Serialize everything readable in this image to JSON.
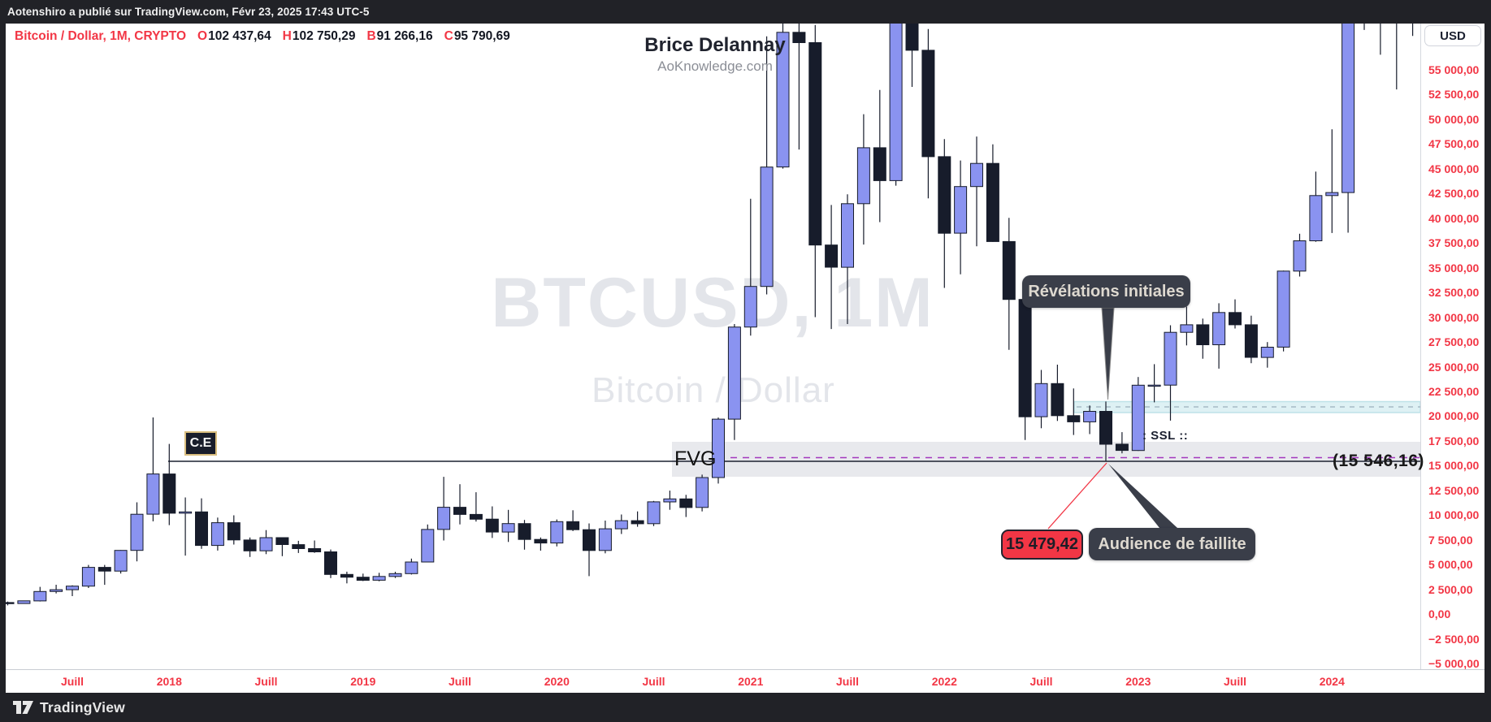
{
  "publish_bar": {
    "text": "Aotenshiro a publié sur TradingView.com, Févr 23, 2025 17:43 UTC-5"
  },
  "symbol_line": {
    "symbol": "Bitcoin / Dollar, 1M, CRYPTO",
    "ohlc": [
      {
        "k": "O",
        "v": "102 437,64"
      },
      {
        "k": "H",
        "v": "102 750,29"
      },
      {
        "k": "B",
        "v": "91 266,16"
      },
      {
        "k": "C",
        "v": "95 790,69"
      }
    ]
  },
  "watermark": {
    "line1": "BTCUSD, 1M",
    "line2": "Bitcoin / Dollar"
  },
  "signature": {
    "name": "Brice Delannay",
    "site": "AoKnowledge.com"
  },
  "axis": {
    "currency_button": "USD",
    "price_labels": [
      "55 000,00",
      "52 500,00",
      "50 000,00",
      "47 500,00",
      "45 000,00",
      "42 500,00",
      "40 000,00",
      "37 500,00",
      "35 000,00",
      "32 500,00",
      "30 000,00",
      "27 500,00",
      "25 000,00",
      "22 500,00",
      "20 000,00",
      "17 500,00",
      "15 000,00",
      "12 500,00",
      "10 000,00",
      "7 500,00",
      "5 000,00",
      "2 500,00",
      "0,00",
      "−2 500,00",
      "−5 000,00"
    ],
    "time_labels": [
      {
        "label": "Juill",
        "mi": 4
      },
      {
        "label": "2018",
        "mi": 10
      },
      {
        "label": "Juill",
        "mi": 16
      },
      {
        "label": "2019",
        "mi": 22
      },
      {
        "label": "Juill",
        "mi": 28
      },
      {
        "label": "2020",
        "mi": 34
      },
      {
        "label": "Juill",
        "mi": 40
      },
      {
        "label": "2021",
        "mi": 46
      },
      {
        "label": "Juill",
        "mi": 52
      },
      {
        "label": "2022",
        "mi": 58
      },
      {
        "label": "Juill",
        "mi": 64
      },
      {
        "label": "2023",
        "mi": 70
      },
      {
        "label": "Juill",
        "mi": 76
      },
      {
        "label": "2024",
        "mi": 82
      }
    ]
  },
  "annotations": {
    "ce_label": "C.E",
    "fvg_label": "FVG",
    "level_price_label": "(15 546,16)",
    "ssl_label": ": SSL ::",
    "revelations_label": "Révélations initiales",
    "bankruptcy_price_label": "15 479,42",
    "bankruptcy_label": "Audience de faillite"
  },
  "footer": {
    "brand": "TradingView"
  },
  "colors": {
    "chrome_dark": "#212227",
    "axis_text_red": "#f23645",
    "candle_up_body": "#8A93F0",
    "candle_down_body": "#171C2B",
    "candle_border": "#171C2B",
    "fvg_band": "rgba(205,207,214,0.45)",
    "cyan_band_fill": "#DEF1F4",
    "cyan_band_edge": "#BFE2E8",
    "cyan_dash": "#9AAFBC",
    "purple_dash": "#A438BE",
    "ce_line": "#1B2030",
    "tooltip_bg": "#3A3E49",
    "red_accent": "#F23645"
  },
  "chart_data": {
    "type": "candlestick",
    "symbol": "BTCUSD",
    "timeframe": "1M",
    "title": "Bitcoin / Dollar, 1M, CRYPTO",
    "price_axis": {
      "min": -5000,
      "max": 55000,
      "step": 2500,
      "format": "fr"
    },
    "time_axis_visible_range": [
      "2017-03",
      "2024-06"
    ],
    "grid": false,
    "annotation_prices": {
      "fvg_consequent_encroachment": 15546.16,
      "bankruptcy_hearing_low": 15479.42
    },
    "candles_format": [
      "month",
      "open",
      "high",
      "low",
      "close"
    ],
    "candles": [
      [
        "2017-03",
        1180,
        1280,
        890,
        1080
      ],
      [
        "2017-04",
        1080,
        1350,
        1060,
        1350
      ],
      [
        "2017-05",
        1350,
        2760,
        1290,
        2300
      ],
      [
        "2017-06",
        2300,
        2980,
        2100,
        2480
      ],
      [
        "2017-07",
        2480,
        2920,
        1830,
        2840
      ],
      [
        "2017-08",
        2840,
        4980,
        2650,
        4735
      ],
      [
        "2017-09",
        4735,
        4975,
        2970,
        4360
      ],
      [
        "2017-10",
        4360,
        6480,
        4110,
        6450
      ],
      [
        "2017-11",
        6450,
        11300,
        5340,
        10100
      ],
      [
        "2017-12",
        10100,
        19870,
        9380,
        14160
      ],
      [
        "2018-01",
        14160,
        17200,
        9000,
        10200
      ],
      [
        "2018-02",
        10200,
        11790,
        5920,
        10330
      ],
      [
        "2018-03",
        10330,
        11700,
        6600,
        6940
      ],
      [
        "2018-04",
        6940,
        9760,
        6430,
        9240
      ],
      [
        "2018-05",
        9240,
        9990,
        7040,
        7500
      ],
      [
        "2018-06",
        7500,
        7750,
        5780,
        6400
      ],
      [
        "2018-07",
        6400,
        8500,
        6070,
        7730
      ],
      [
        "2018-08",
        7730,
        7760,
        5860,
        7030
      ],
      [
        "2018-09",
        7030,
        7410,
        6180,
        6630
      ],
      [
        "2018-10",
        6630,
        7450,
        6200,
        6300
      ],
      [
        "2018-11",
        6300,
        6540,
        3650,
        4020
      ],
      [
        "2018-12",
        4020,
        4300,
        3120,
        3740
      ],
      [
        "2019-01",
        3740,
        4100,
        3350,
        3430
      ],
      [
        "2019-02",
        3430,
        4180,
        3330,
        3810
      ],
      [
        "2019-03",
        3810,
        4290,
        3660,
        4100
      ],
      [
        "2019-04",
        4100,
        5620,
        4010,
        5270
      ],
      [
        "2019-05",
        5270,
        9060,
        5270,
        8560
      ],
      [
        "2019-06",
        8560,
        13880,
        7450,
        10800
      ],
      [
        "2019-07",
        10800,
        13130,
        9070,
        10080
      ],
      [
        "2019-08",
        10080,
        12320,
        9360,
        9600
      ],
      [
        "2019-09",
        9600,
        10890,
        7700,
        8300
      ],
      [
        "2019-10",
        8300,
        10540,
        7300,
        9150
      ],
      [
        "2019-11",
        9150,
        9520,
        6520,
        7550
      ],
      [
        "2019-12",
        7550,
        7750,
        6420,
        7190
      ],
      [
        "2020-01",
        7190,
        9570,
        6850,
        9350
      ],
      [
        "2020-02",
        9350,
        10500,
        8400,
        8540
      ],
      [
        "2020-03",
        8540,
        9170,
        3850,
        6440
      ],
      [
        "2020-04",
        6440,
        9460,
        6150,
        8630
      ],
      [
        "2020-05",
        8630,
        10070,
        8100,
        9450
      ],
      [
        "2020-06",
        9450,
        10380,
        8830,
        9140
      ],
      [
        "2020-07",
        9140,
        11440,
        8900,
        11350
      ],
      [
        "2020-08",
        11350,
        12480,
        10550,
        11650
      ],
      [
        "2020-09",
        11650,
        12060,
        9820,
        10780
      ],
      [
        "2020-10",
        10780,
        14100,
        10380,
        13800
      ],
      [
        "2020-11",
        13800,
        19860,
        13200,
        19700
      ],
      [
        "2020-12",
        19700,
        29300,
        17600,
        29000
      ],
      [
        "2021-01",
        29000,
        41950,
        28130,
        33100
      ],
      [
        "2021-02",
        33100,
        58350,
        32300,
        45160
      ],
      [
        "2021-03",
        45160,
        61780,
        45000,
        58760
      ],
      [
        "2021-04",
        58760,
        64850,
        46930,
        57720
      ],
      [
        "2021-05",
        57720,
        59500,
        30000,
        37280
      ],
      [
        "2021-06",
        37280,
        41330,
        28800,
        35040
      ],
      [
        "2021-07",
        35040,
        42400,
        29300,
        41460
      ],
      [
        "2021-08",
        41460,
        50500,
        37330,
        47110
      ],
      [
        "2021-09",
        47110,
        52950,
        39600,
        43790
      ],
      [
        "2021-10",
        43790,
        66970,
        43280,
        61300
      ],
      [
        "2021-11",
        61300,
        69000,
        53250,
        56950
      ],
      [
        "2021-12",
        56950,
        59100,
        42000,
        46210
      ],
      [
        "2022-01",
        46210,
        47990,
        32950,
        38480
      ],
      [
        "2022-02",
        38480,
        45820,
        34320,
        43190
      ],
      [
        "2022-03",
        43190,
        48240,
        37160,
        45530
      ],
      [
        "2022-04",
        45530,
        47450,
        37600,
        37640
      ],
      [
        "2022-05",
        37640,
        40020,
        26700,
        31790
      ],
      [
        "2022-06",
        31790,
        31960,
        17600,
        19940
      ],
      [
        "2022-07",
        19940,
        24670,
        18780,
        23290
      ],
      [
        "2022-08",
        23290,
        25200,
        19520,
        20050
      ],
      [
        "2022-09",
        20050,
        22800,
        18100,
        19430
      ],
      [
        "2022-10",
        19430,
        21080,
        18190,
        20490
      ],
      [
        "2022-11",
        20490,
        21480,
        15480,
        17170
      ],
      [
        "2022-12",
        17170,
        18390,
        16250,
        16540
      ],
      [
        "2023-01",
        16540,
        23960,
        16490,
        23130
      ],
      [
        "2023-02",
        23130,
        25250,
        21400,
        23140
      ],
      [
        "2023-03",
        23140,
        29180,
        19550,
        28470
      ],
      [
        "2023-04",
        28470,
        31050,
        27150,
        29230
      ],
      [
        "2023-05",
        29230,
        29850,
        25800,
        27210
      ],
      [
        "2023-06",
        27210,
        31400,
        24800,
        30470
      ],
      [
        "2023-07",
        30470,
        31800,
        28850,
        29230
      ],
      [
        "2023-08",
        29230,
        30150,
        25350,
        25940
      ],
      [
        "2023-09",
        25940,
        27480,
        24900,
        26970
      ],
      [
        "2023-10",
        26970,
        34700,
        26540,
        34650
      ],
      [
        "2023-11",
        34650,
        38420,
        34100,
        37710
      ],
      [
        "2023-12",
        37710,
        44700,
        37610,
        42280
      ],
      [
        "2024-01",
        42280,
        48970,
        38500,
        42580
      ],
      [
        "2024-02",
        42580,
        63930,
        38530,
        61200
      ],
      [
        "2024-03",
        61200,
        73800,
        59000,
        71330
      ],
      [
        "2024-04",
        71330,
        72800,
        56500,
        60640
      ],
      [
        "2024-05",
        60640,
        71950,
        53000,
        67530
      ],
      [
        "2024-06",
        67530,
        72000,
        58400,
        62680
      ]
    ]
  }
}
